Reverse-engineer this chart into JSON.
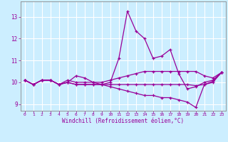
{
  "title": "",
  "xlabel": "Windchill (Refroidissement éolien,°C)",
  "ylabel": "",
  "xlim": [
    -0.5,
    23.5
  ],
  "ylim": [
    8.7,
    13.7
  ],
  "yticks": [
    9,
    10,
    11,
    12,
    13
  ],
  "xticks": [
    0,
    1,
    2,
    3,
    4,
    5,
    6,
    7,
    8,
    9,
    10,
    11,
    12,
    13,
    14,
    15,
    16,
    17,
    18,
    19,
    20,
    21,
    22,
    23
  ],
  "background_color": "#cceeff",
  "grid_color": "#ffffff",
  "line_color": "#990099",
  "spine_color": "#888888",
  "lines": [
    [
      10.1,
      9.9,
      10.1,
      10.1,
      9.9,
      10.0,
      10.3,
      10.2,
      10.0,
      9.9,
      10.0,
      11.1,
      13.25,
      12.35,
      12.0,
      11.1,
      11.2,
      11.5,
      10.4,
      9.7,
      9.8,
      10.0,
      10.1,
      10.45
    ],
    [
      10.1,
      9.9,
      10.1,
      10.1,
      9.9,
      10.1,
      10.0,
      10.0,
      10.0,
      10.0,
      10.1,
      10.2,
      10.3,
      10.4,
      10.5,
      10.5,
      10.5,
      10.5,
      10.5,
      10.5,
      10.5,
      10.3,
      10.2,
      10.45
    ],
    [
      10.1,
      9.9,
      10.1,
      10.1,
      9.9,
      10.0,
      9.9,
      9.9,
      9.9,
      9.9,
      9.8,
      9.7,
      9.6,
      9.5,
      9.4,
      9.4,
      9.3,
      9.3,
      9.2,
      9.1,
      8.85,
      9.9,
      10.0,
      10.45
    ],
    [
      10.1,
      9.9,
      10.1,
      10.1,
      9.9,
      10.0,
      9.9,
      9.9,
      9.9,
      9.9,
      9.9,
      9.9,
      9.9,
      9.9,
      9.9,
      9.9,
      9.9,
      9.9,
      9.9,
      9.9,
      9.85,
      9.9,
      10.05,
      10.45
    ]
  ]
}
